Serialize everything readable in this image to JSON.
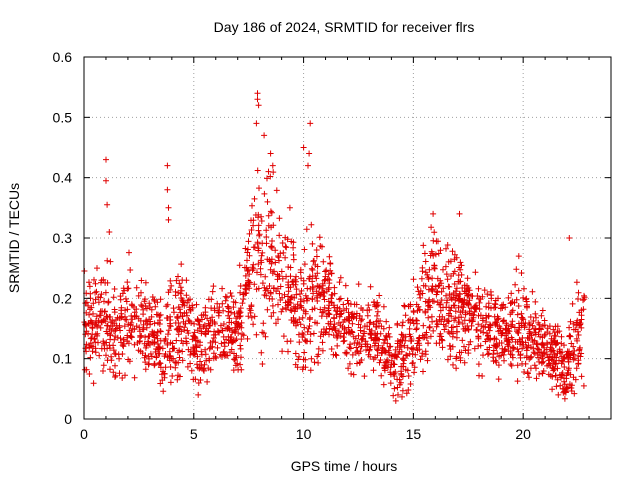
{
  "chart_data": {
    "type": "scatter",
    "title": "Day 186 of 2024, SRMTID for receiver flrs",
    "xlabel": "GPS time / hours",
    "ylabel": "SRMTID / TECUs",
    "xlim": [
      0,
      24
    ],
    "ylim": [
      0,
      0.6
    ],
    "x_ticks": [
      0,
      5,
      10,
      15,
      20
    ],
    "x_tick_labels": [
      "0",
      "5",
      "10",
      "15",
      "20"
    ],
    "y_ticks": [
      0,
      0.1,
      0.2,
      0.3,
      0.4,
      0.5,
      0.6
    ],
    "y_tick_labels": [
      "0",
      "0.1",
      "0.2",
      "0.3",
      "0.4",
      "0.5",
      "0.6"
    ],
    "grid": true,
    "marker": "plus",
    "marker_color": "#e00000",
    "series": [
      {
        "name": "SRMTID",
        "envelope": {
          "x": [
            0.0,
            0.5,
            1.0,
            1.5,
            2.0,
            2.5,
            3.0,
            3.5,
            4.0,
            4.5,
            5.0,
            5.5,
            6.0,
            6.5,
            7.0,
            7.5,
            8.0,
            8.5,
            9.0,
            9.5,
            10.0,
            10.5,
            11.0,
            11.5,
            12.0,
            12.5,
            13.0,
            13.5,
            14.0,
            14.5,
            15.0,
            15.5,
            16.0,
            16.5,
            17.0,
            17.5,
            18.0,
            18.5,
            19.0,
            19.5,
            20.0,
            20.5,
            21.0,
            21.5,
            22.0,
            22.5,
            22.8
          ],
          "mean": [
            0.17,
            0.15,
            0.16,
            0.14,
            0.17,
            0.16,
            0.15,
            0.12,
            0.14,
            0.17,
            0.12,
            0.13,
            0.15,
            0.16,
            0.14,
            0.24,
            0.27,
            0.26,
            0.24,
            0.21,
            0.17,
            0.22,
            0.2,
            0.17,
            0.15,
            0.15,
            0.14,
            0.15,
            0.09,
            0.1,
            0.14,
            0.19,
            0.22,
            0.18,
            0.19,
            0.18,
            0.17,
            0.16,
            0.14,
            0.15,
            0.15,
            0.13,
            0.12,
            0.1,
            0.08,
            0.14,
            0.16
          ],
          "spread": [
            0.05,
            0.045,
            0.06,
            0.045,
            0.05,
            0.05,
            0.045,
            0.04,
            0.05,
            0.05,
            0.04,
            0.04,
            0.04,
            0.045,
            0.04,
            0.07,
            0.08,
            0.08,
            0.07,
            0.06,
            0.06,
            0.07,
            0.06,
            0.04,
            0.04,
            0.04,
            0.04,
            0.045,
            0.035,
            0.04,
            0.05,
            0.06,
            0.07,
            0.06,
            0.06,
            0.05,
            0.05,
            0.05,
            0.04,
            0.045,
            0.045,
            0.04,
            0.04,
            0.03,
            0.035,
            0.05,
            0.05
          ]
        },
        "point_count": 2200,
        "spikes": [
          {
            "x": 1.0,
            "y": 0.43
          },
          {
            "x": 1.0,
            "y": 0.395
          },
          {
            "x": 1.05,
            "y": 0.355
          },
          {
            "x": 1.15,
            "y": 0.31
          },
          {
            "x": 3.8,
            "y": 0.42
          },
          {
            "x": 3.8,
            "y": 0.38
          },
          {
            "x": 3.85,
            "y": 0.35
          },
          {
            "x": 3.85,
            "y": 0.33
          },
          {
            "x": 7.9,
            "y": 0.54
          },
          {
            "x": 7.9,
            "y": 0.53
          },
          {
            "x": 7.95,
            "y": 0.52
          },
          {
            "x": 7.85,
            "y": 0.49
          },
          {
            "x": 8.2,
            "y": 0.47
          },
          {
            "x": 8.5,
            "y": 0.44
          },
          {
            "x": 8.6,
            "y": 0.42
          },
          {
            "x": 8.4,
            "y": 0.41
          },
          {
            "x": 10.0,
            "y": 0.45
          },
          {
            "x": 10.3,
            "y": 0.49
          },
          {
            "x": 10.25,
            "y": 0.44
          },
          {
            "x": 10.2,
            "y": 0.42
          },
          {
            "x": 15.9,
            "y": 0.34
          },
          {
            "x": 17.1,
            "y": 0.34
          },
          {
            "x": 19.8,
            "y": 0.27
          },
          {
            "x": 22.1,
            "y": 0.3
          },
          {
            "x": 14.2,
            "y": 0.03
          },
          {
            "x": 14.3,
            "y": 0.04
          },
          {
            "x": 21.6,
            "y": 0.04
          },
          {
            "x": 5.2,
            "y": 0.04
          }
        ]
      }
    ]
  }
}
